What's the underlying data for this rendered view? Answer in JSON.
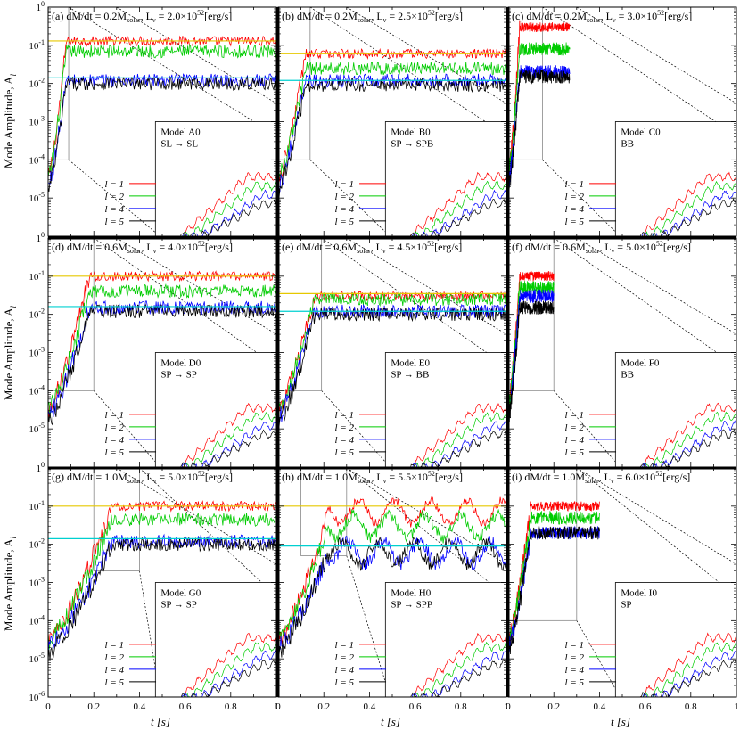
{
  "figure": {
    "ylabel_left": "Mode Amplitude, A",
    "ylabel_sub": "l",
    "xlabel": "t [s]",
    "x_ticks": [
      "0",
      "0.2",
      "0.4",
      "0.6",
      "0.8",
      "1"
    ],
    "y_ticks": [
      "1",
      "10",
      "10",
      "10",
      "10",
      "10",
      "10"
    ],
    "y_tick_exps": [
      "0",
      "-1",
      "-2",
      "-3",
      "-4",
      "-5",
      "-6"
    ]
  },
  "legend_labels": [
    "l = 1",
    "l = 2",
    "l = 4",
    "l = 5"
  ],
  "colors": {
    "l1": "#ff0000",
    "l2": "#00cc00",
    "l4": "#0000ff",
    "l5": "#000000",
    "yellow_line": "#e6c800",
    "cyan_line": "#00d0d0",
    "frame": "#000000"
  },
  "panels": [
    {
      "id": "a",
      "title": "(a) dM/dt = 0.2M",
      "sub": "solar",
      "lum": ", L",
      "nu": "ν",
      "eq": " = 2.0×10",
      "exp": "52",
      "unit": "[erg/s]",
      "model": "Model A0",
      "trans": "SL → SL"
    },
    {
      "id": "b",
      "title": "(b) dM/dt = 0.2M",
      "sub": "solar",
      "lum": ", L",
      "nu": "ν",
      "eq": " = 2.5×10",
      "exp": "52",
      "unit": "[erg/s]",
      "model": "Model B0",
      "trans": "SP → SPB"
    },
    {
      "id": "c",
      "title": "(c) dM/dt = 0.2M",
      "sub": "solar",
      "lum": ", L",
      "nu": "ν",
      "eq": " = 3.0×10",
      "exp": "52",
      "unit": "[erg/s]",
      "model": "Model C0",
      "trans": "BB"
    },
    {
      "id": "d",
      "title": "(d) dM/dt = 0.6M",
      "sub": "solar",
      "lum": ", L",
      "nu": "ν",
      "eq": " = 4.0×10",
      "exp": "52",
      "unit": "[erg/s]",
      "model": "Model D0",
      "trans": "SP → SP"
    },
    {
      "id": "e",
      "title": "(e) dM/dt = 0.6M",
      "sub": "solar",
      "lum": ", L",
      "nu": "ν",
      "eq": " = 4.5×10",
      "exp": "52",
      "unit": "[erg/s]",
      "model": "Model E0",
      "trans": "SP → BB"
    },
    {
      "id": "f",
      "title": "(f) dM/dt = 0.6M",
      "sub": "solar",
      "lum": ", L",
      "nu": "ν",
      "eq": " = 5.0×10",
      "exp": "52",
      "unit": "[erg/s]",
      "model": "Model F0",
      "trans": "BB"
    },
    {
      "id": "g",
      "title": "(g) dM/dt = 1.0M",
      "sub": "solar",
      "lum": ", L",
      "nu": "ν",
      "eq": " = 5.0×10",
      "exp": "52",
      "unit": "[erg/s]",
      "model": "Model G0",
      "trans": "SP → SP"
    },
    {
      "id": "h",
      "title": "(h) dM/dt = 1.0M",
      "sub": "solar",
      "lum": ", L",
      "nu": "ν",
      "eq": " = 5.5×10",
      "exp": "52",
      "unit": "[erg/s]",
      "model": "Model H0",
      "trans": "SP → SPP"
    },
    {
      "id": "i",
      "title": "(i) dM/dt = 1.0M",
      "sub": "solar",
      "lum": ", L",
      "nu": "ν",
      "eq": " = 6.0×10",
      "exp": "52",
      "unit": "[erg/s]",
      "model": "Model I0",
      "trans": "SP"
    }
  ],
  "chart_data": {
    "type": "line",
    "x_range": [
      0,
      1
    ],
    "y_range": [
      1e-06,
      1
    ],
    "y_scale": "log",
    "xlabel": "t [s]",
    "ylabel": "Mode Amplitude, A_l",
    "legend": [
      "l = 1",
      "l = 2",
      "l = 4",
      "l = 5"
    ],
    "panels": [
      {
        "id": "a",
        "t_end": 1.0,
        "onset": 0.08,
        "sat": {
          "l1": 0.13,
          "l2": 0.07,
          "l4": 0.012,
          "l5": 0.01
        },
        "ref_lines": {
          "yellow": 0.13,
          "cyan": 0.014
        },
        "zoom_box": {
          "t": [
            0,
            0.09
          ],
          "A": [
            0.0001,
            1.0
          ]
        }
      },
      {
        "id": "b",
        "t_end": 1.0,
        "onset": 0.12,
        "sat": {
          "l1": 0.06,
          "l2": 0.025,
          "l4": 0.012,
          "l5": 0.009
        },
        "ref_lines": {
          "yellow": 0.06,
          "cyan": 0.012
        },
        "zoom_box": {
          "t": [
            0,
            0.14
          ],
          "A": [
            0.0001,
            1.0
          ]
        }
      },
      {
        "id": "c",
        "t_end": 0.27,
        "onset": 0.05,
        "sat": {
          "l1": 0.3,
          "l2": 0.08,
          "l4": 0.02,
          "l5": 0.015
        },
        "ref_lines": {},
        "zoom_box": {
          "t": [
            0,
            0.15
          ],
          "A": [
            0.0001,
            1.0
          ]
        }
      },
      {
        "id": "d",
        "t_end": 1.0,
        "onset": 0.18,
        "sat": {
          "l1": 0.1,
          "l2": 0.04,
          "l4": 0.015,
          "l5": 0.012
        },
        "ref_lines": {
          "yellow": 0.1,
          "cyan": 0.016
        },
        "zoom_box": {
          "t": [
            0,
            0.2
          ],
          "A": [
            0.0001,
            1.0
          ]
        }
      },
      {
        "id": "e",
        "t_end": 1.0,
        "onset": 0.16,
        "sat": {
          "l1": 0.03,
          "l2": 0.025,
          "l4": 0.012,
          "l5": 0.01
        },
        "ref_lines": {
          "yellow": 0.035,
          "cyan": 0.012
        },
        "zoom_box": {
          "t": [
            0,
            0.19
          ],
          "A": [
            0.0001,
            1.0
          ]
        }
      },
      {
        "id": "f",
        "t_end": 0.2,
        "onset": 0.05,
        "sat": {
          "l1": 0.1,
          "l2": 0.05,
          "l4": 0.03,
          "l5": 0.015
        },
        "ref_lines": {},
        "zoom_box": {
          "t": [
            0,
            0.2
          ],
          "A": [
            0.0001,
            1.0
          ]
        }
      },
      {
        "id": "g",
        "t_end": 1.0,
        "onset": 0.28,
        "sat": {
          "l1": 0.1,
          "l2": 0.045,
          "l4": 0.012,
          "l5": 0.01
        },
        "ref_lines": {
          "yellow": 0.1,
          "cyan": 0.014
        },
        "zoom_box": {
          "t": [
            0.2,
            0.4
          ],
          "A": [
            0.002,
            1.0
          ]
        }
      },
      {
        "id": "h",
        "t_end": 1.0,
        "onset": 0.22,
        "sat": {
          "l1": 0.07,
          "l2": 0.03,
          "l4": 0.006,
          "l5": 0.006
        },
        "ref_lines": {
          "yellow": 0.1,
          "cyan": 0.009
        },
        "zoom_box": {
          "t": [
            0.1,
            0.3
          ],
          "A": [
            0.005,
            1.0
          ]
        }
      },
      {
        "id": "i",
        "t_end": 0.4,
        "onset": 0.1,
        "sat": {
          "l1": 0.1,
          "l2": 0.05,
          "l4": 0.02,
          "l5": 0.02
        },
        "ref_lines": {},
        "zoom_box": {
          "t": [
            0,
            0.3
          ],
          "A": [
            0.0001,
            1.0
          ]
        }
      }
    ]
  }
}
